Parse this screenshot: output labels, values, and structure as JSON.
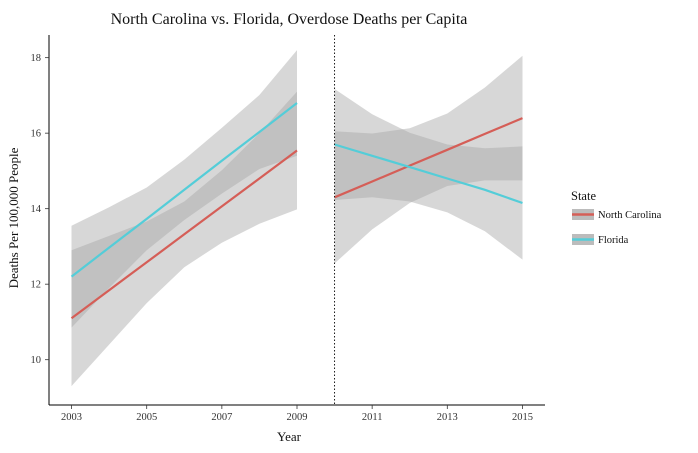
{
  "chart_data": {
    "type": "line",
    "title": "North Carolina vs. Florida, Overdose Deaths per Capita",
    "xlabel": "Year",
    "ylabel": "Deaths Per 100,000 People",
    "xlim": [
      2002.4,
      2015.6
    ],
    "ylim": [
      8.8,
      18.6
    ],
    "x_ticks": [
      2003,
      2005,
      2007,
      2009,
      2011,
      2013,
      2015
    ],
    "y_ticks": [
      10,
      12,
      14,
      16,
      18
    ],
    "vline": {
      "x": 2010,
      "style": "dotted"
    },
    "grid": false,
    "legend": {
      "title": "State",
      "placement": "right",
      "entries": [
        "North Carolina",
        "Florida"
      ]
    },
    "series": [
      {
        "name": "North Carolina",
        "color": "#d55e57",
        "segments": [
          {
            "x": [
              2003,
              2004,
              2005,
              2006,
              2007,
              2008,
              2009
            ],
            "y": [
              11.1,
              11.84,
              12.58,
              13.32,
              14.06,
              14.8,
              15.54
            ],
            "ci_lower": [
              9.3,
              10.4,
              11.5,
              12.45,
              13.1,
              13.6,
              13.98
            ],
            "ci_upper": [
              12.9,
              13.28,
              13.66,
              14.19,
              15.02,
              16.0,
              17.1
            ]
          },
          {
            "x": [
              2010,
              2011,
              2012,
              2013,
              2014,
              2015
            ],
            "y": [
              14.3,
              14.72,
              15.14,
              15.56,
              15.98,
              16.4
            ],
            "ci_lower": [
              12.55,
              13.45,
              14.15,
              14.6,
              14.75,
              14.75
            ],
            "ci_upper": [
              16.05,
              15.99,
              16.13,
              16.52,
              17.21,
              18.05
            ]
          }
        ]
      },
      {
        "name": "Florida",
        "color": "#54cdd8",
        "segments": [
          {
            "x": [
              2003,
              2004,
              2005,
              2006,
              2007,
              2008,
              2009
            ],
            "y": [
              12.2,
              12.97,
              13.73,
              14.5,
              15.27,
              16.03,
              16.8
            ],
            "ci_lower": [
              10.85,
              11.9,
              12.9,
              13.7,
              14.4,
              15.05,
              15.4
            ],
            "ci_upper": [
              13.55,
              14.04,
              14.56,
              15.3,
              16.14,
              17.01,
              18.2
            ]
          },
          {
            "x": [
              2010,
              2011,
              2012,
              2013,
              2014,
              2015
            ],
            "y": [
              15.7,
              15.4,
              15.1,
              14.8,
              14.5,
              14.15
            ],
            "ci_lower": [
              14.23,
              14.3,
              14.19,
              13.9,
              13.4,
              12.65
            ],
            "ci_upper": [
              17.17,
              16.5,
              16.01,
              15.7,
              15.6,
              15.65
            ]
          }
        ]
      }
    ],
    "colors": {
      "ci_band": "#a6a6a6",
      "ci_band_opacity": 0.45,
      "axis": "#000000",
      "vline": "#000000"
    }
  }
}
